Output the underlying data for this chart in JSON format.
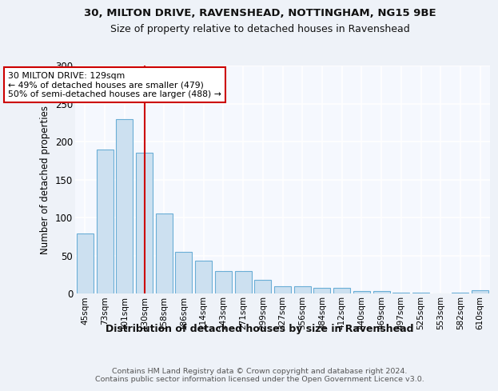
{
  "title1": "30, MILTON DRIVE, RAVENSHEAD, NOTTINGHAM, NG15 9BE",
  "title2": "Size of property relative to detached houses in Ravenshead",
  "xlabel": "Distribution of detached houses by size in Ravenshead",
  "ylabel": "Number of detached properties",
  "categories": [
    "45sqm",
    "73sqm",
    "101sqm",
    "130sqm",
    "158sqm",
    "186sqm",
    "214sqm",
    "243sqm",
    "271sqm",
    "299sqm",
    "327sqm",
    "356sqm",
    "384sqm",
    "412sqm",
    "440sqm",
    "469sqm",
    "497sqm",
    "525sqm",
    "553sqm",
    "582sqm",
    "610sqm"
  ],
  "values": [
    79,
    190,
    230,
    185,
    105,
    55,
    43,
    30,
    30,
    18,
    10,
    10,
    7,
    7,
    3,
    3,
    1,
    1,
    0,
    1,
    4
  ],
  "bar_color": "#cce0f0",
  "bar_edge_color": "#6aaed6",
  "vline_x_idx": 3,
  "vline_color": "#cc0000",
  "annotation_text": "30 MILTON DRIVE: 129sqm\n← 49% of detached houses are smaller (479)\n50% of semi-detached houses are larger (488) →",
  "annotation_box_color": "white",
  "annotation_box_edge_color": "#cc0000",
  "ylim": [
    0,
    300
  ],
  "yticks": [
    0,
    50,
    100,
    150,
    200,
    250,
    300
  ],
  "footer": "Contains HM Land Registry data © Crown copyright and database right 2024.\nContains public sector information licensed under the Open Government Licence v3.0.",
  "bg_color": "#eef2f8",
  "plot_bg_color": "#f5f8fe"
}
